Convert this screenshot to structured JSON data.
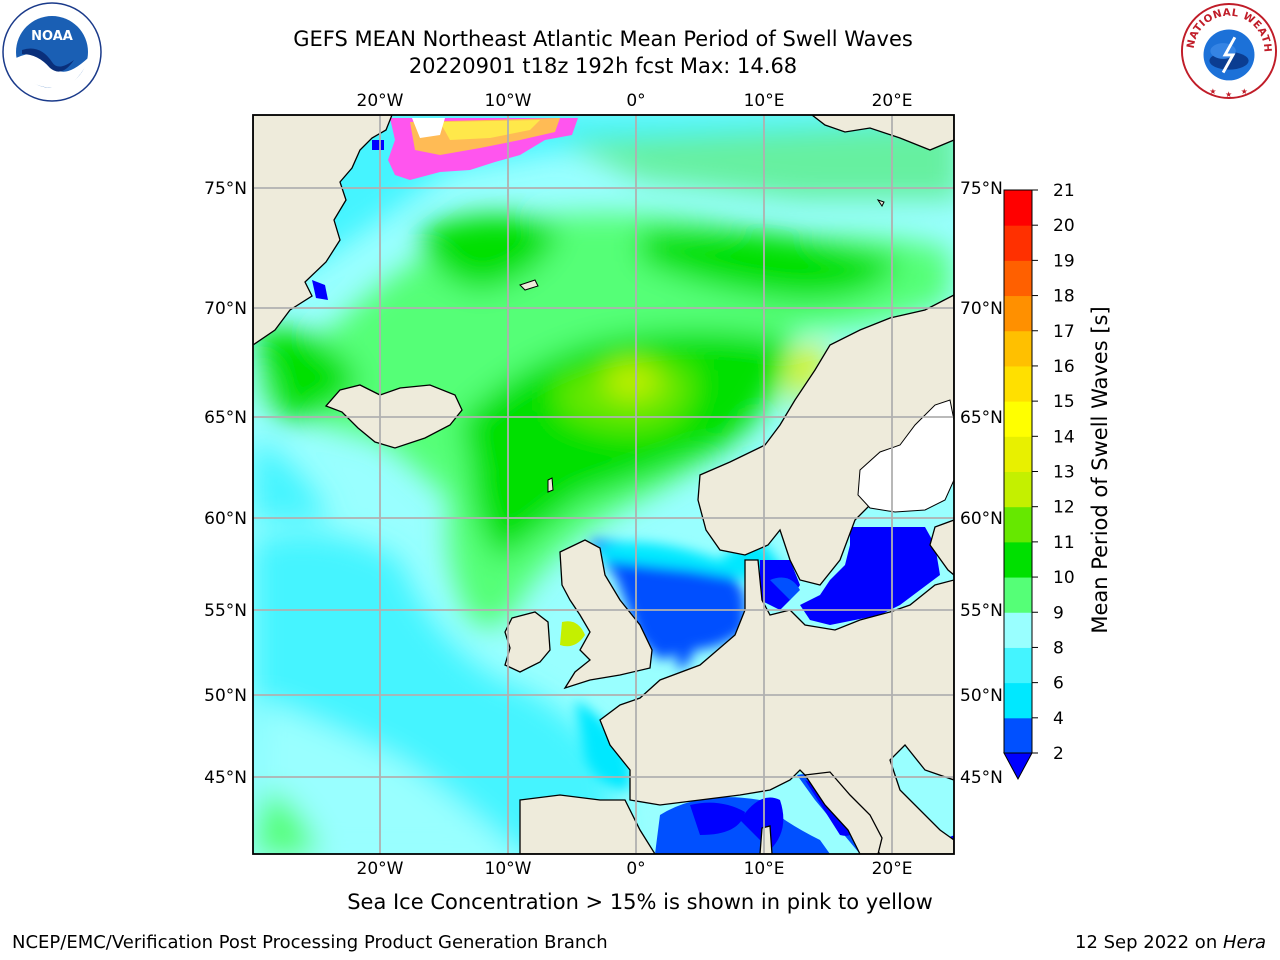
{
  "header": {
    "title_line1": "GEFS MEAN Northeast Atlantic Mean Period of Swell Waves",
    "title_line2": "20220901 t18z 192h fcst   Max: 14.68"
  },
  "map": {
    "lon_ticks": [
      "20°W",
      "10°W",
      "0°",
      "10°E",
      "20°E"
    ],
    "lat_ticks": [
      "75°N",
      "70°N",
      "65°N",
      "60°N",
      "55°N",
      "50°N",
      "45°N"
    ]
  },
  "colorbar": {
    "label": "Mean Period of Swell Waves [s]",
    "ticks": [
      "2",
      "4",
      "6",
      "8",
      "9",
      "10",
      "11",
      "12",
      "13",
      "14",
      "15",
      "16",
      "17",
      "18",
      "19",
      "20",
      "21"
    ],
    "colors": [
      "#0050ff",
      "#00e8ff",
      "#44f4ff",
      "#99ffff",
      "#55ff77",
      "#00e000",
      "#66e800",
      "#c4f000",
      "#e8f000",
      "#ffff00",
      "#ffe000",
      "#ffc000",
      "#ff9000",
      "#ff6000",
      "#ff3000",
      "#ff0000"
    ],
    "under_color": "#0000ff"
  },
  "footer": {
    "sea_ice_note": "Sea Ice Concentration > 15% is shown in pink to yellow",
    "producer": "NCEP/EMC/Verification Post Processing Product Generation Branch",
    "date_prefix": "12 Sep 2022 on ",
    "machine": "Hera"
  },
  "logos": {
    "noaa_text": "NOAA",
    "nws_text": "NATIONAL WEATHER SERVICE"
  }
}
